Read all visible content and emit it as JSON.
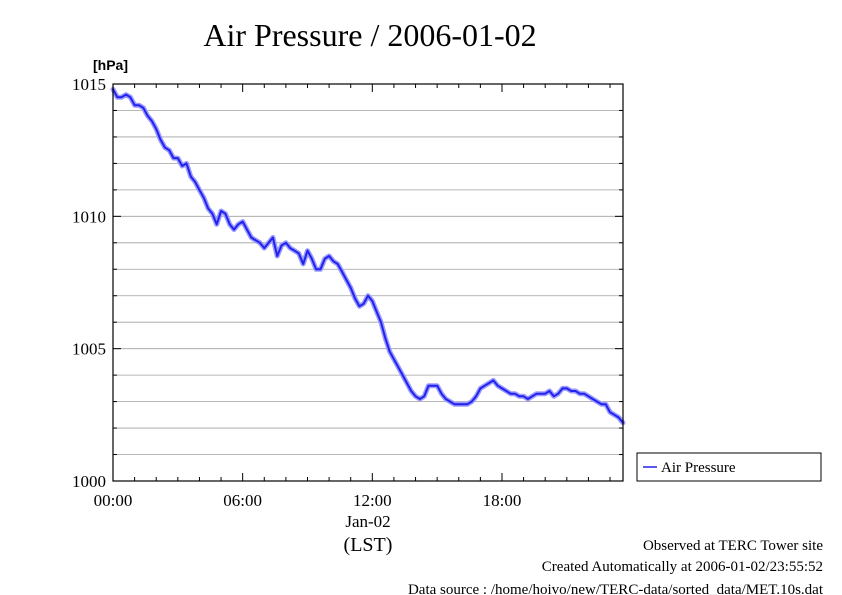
{
  "colors": {
    "series": "#2222ee",
    "series_halo": "#9a9aff",
    "grid": "#a0a0a0",
    "axis": "#000000",
    "background": "#ffffff"
  },
  "chart_data": {
    "type": "line",
    "title": "Air Pressure / 2006-01-02",
    "ylabel": "[hPa]",
    "xlabel": "(LST)",
    "date_label": "Jan-02",
    "ylim": [
      1000,
      1015
    ],
    "y_major_ticks": [
      1000,
      1005,
      1010,
      1015
    ],
    "y_tick_labels": [
      "1000",
      "1005",
      "1010",
      "1015"
    ],
    "y_minor_step": 1,
    "xlim_hours": [
      0,
      23.6
    ],
    "x_ticks_hours": [
      0,
      6,
      12,
      18
    ],
    "x_tick_labels": [
      "00:00",
      "06:00",
      "12:00",
      "18:00"
    ],
    "grid": true,
    "legend_position": "right",
    "series": [
      {
        "name": "Air Pressure",
        "x_hours": [
          0.0,
          0.2,
          0.4,
          0.6,
          0.8,
          1.0,
          1.2,
          1.4,
          1.6,
          1.8,
          2.0,
          2.2,
          2.4,
          2.6,
          2.8,
          3.0,
          3.2,
          3.4,
          3.6,
          3.8,
          4.0,
          4.2,
          4.4,
          4.6,
          4.8,
          5.0,
          5.2,
          5.4,
          5.6,
          5.8,
          6.0,
          6.2,
          6.4,
          6.6,
          6.8,
          7.0,
          7.2,
          7.4,
          7.6,
          7.8,
          8.0,
          8.2,
          8.4,
          8.6,
          8.8,
          9.0,
          9.2,
          9.4,
          9.6,
          9.8,
          10.0,
          10.2,
          10.4,
          10.6,
          10.8,
          11.0,
          11.2,
          11.4,
          11.6,
          11.8,
          12.0,
          12.2,
          12.4,
          12.6,
          12.8,
          13.0,
          13.2,
          13.4,
          13.6,
          13.8,
          14.0,
          14.2,
          14.4,
          14.6,
          14.8,
          15.0,
          15.2,
          15.4,
          15.6,
          15.8,
          16.0,
          16.2,
          16.4,
          16.6,
          16.8,
          17.0,
          17.2,
          17.4,
          17.6,
          17.8,
          18.0,
          18.2,
          18.4,
          18.6,
          18.8,
          19.0,
          19.2,
          19.4,
          19.6,
          19.8,
          20.0,
          20.2,
          20.4,
          20.6,
          20.8,
          21.0,
          21.2,
          21.4,
          21.6,
          21.8,
          22.0,
          22.2,
          22.4,
          22.6,
          22.8,
          23.0,
          23.2,
          23.4,
          23.6
        ],
        "values": [
          1014.8,
          1014.5,
          1014.5,
          1014.6,
          1014.5,
          1014.2,
          1014.2,
          1014.1,
          1013.8,
          1013.6,
          1013.3,
          1012.9,
          1012.6,
          1012.5,
          1012.2,
          1012.2,
          1011.9,
          1012.0,
          1011.5,
          1011.3,
          1011.0,
          1010.7,
          1010.3,
          1010.1,
          1009.7,
          1010.2,
          1010.1,
          1009.7,
          1009.5,
          1009.7,
          1009.8,
          1009.5,
          1009.2,
          1009.1,
          1009.0,
          1008.8,
          1009.0,
          1009.2,
          1008.5,
          1008.9,
          1009.0,
          1008.8,
          1008.7,
          1008.6,
          1008.2,
          1008.7,
          1008.4,
          1008.0,
          1008.0,
          1008.4,
          1008.5,
          1008.3,
          1008.2,
          1007.9,
          1007.6,
          1007.3,
          1006.9,
          1006.6,
          1006.7,
          1007.0,
          1006.8,
          1006.4,
          1006.0,
          1005.4,
          1004.9,
          1004.6,
          1004.3,
          1004.0,
          1003.7,
          1003.4,
          1003.2,
          1003.1,
          1003.2,
          1003.6,
          1003.6,
          1003.6,
          1003.3,
          1003.1,
          1003.0,
          1002.9,
          1002.9,
          1002.9,
          1002.9,
          1003.0,
          1003.2,
          1003.5,
          1003.6,
          1003.7,
          1003.8,
          1003.6,
          1003.5,
          1003.4,
          1003.3,
          1003.3,
          1003.2,
          1003.2,
          1003.1,
          1003.2,
          1003.3,
          1003.3,
          1003.3,
          1003.4,
          1003.2,
          1003.3,
          1003.5,
          1003.5,
          1003.4,
          1003.4,
          1003.3,
          1003.3,
          1003.2,
          1003.1,
          1003.0,
          1002.9,
          1002.9,
          1002.6,
          1002.5,
          1002.4,
          1002.2
        ]
      }
    ]
  },
  "footer": {
    "line1": "Observed at TERC Tower site",
    "line2": "Created Automatically at 2006-01-02/23:55:52",
    "line3": "Data source : /home/hoivo/new/TERC-data/sorted_data/MET.10s.dat"
  }
}
